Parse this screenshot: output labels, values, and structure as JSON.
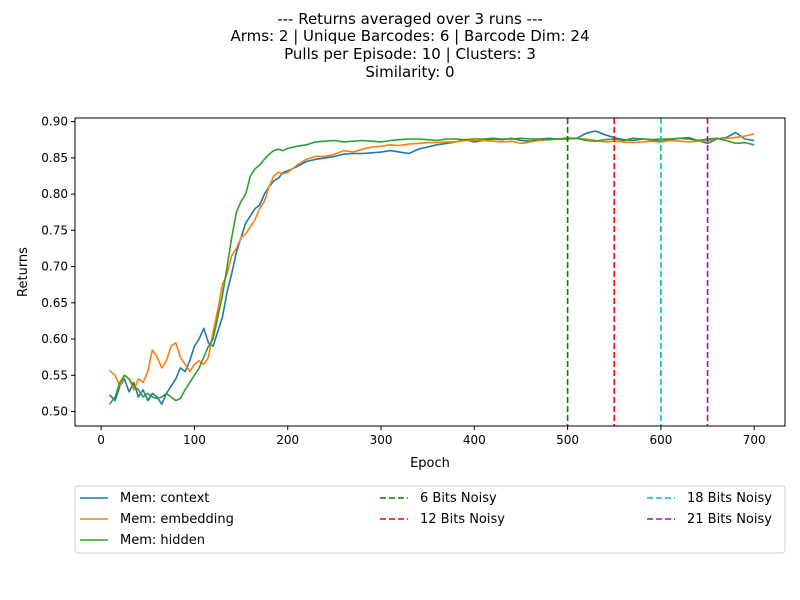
{
  "chart_data": {
    "type": "line",
    "title_lines": [
      "--- Returns averaged over 3 runs ---",
      "Arms: 2 | Unique Barcodes: 6 | Barcode Dim: 24",
      "Pulls per Episode: 10 | Clusters: 3",
      "Similarity: 0"
    ],
    "xlabel": "Epoch",
    "ylabel": "Returns",
    "xlim": [
      -28,
      733
    ],
    "ylim": [
      0.48,
      0.905
    ],
    "xticks": [
      0,
      100,
      200,
      300,
      400,
      500,
      600,
      700
    ],
    "yticks": [
      0.5,
      0.55,
      0.6,
      0.65,
      0.7,
      0.75,
      0.8,
      0.85,
      0.9
    ],
    "grid": false,
    "legend_position": "below-plot",
    "series": [
      {
        "name": "Mem: context",
        "color": "#1f77b4",
        "points": [
          [
            9,
            0.523
          ],
          [
            15,
            0.515
          ],
          [
            20,
            0.535
          ],
          [
            25,
            0.545
          ],
          [
            30,
            0.527
          ],
          [
            35,
            0.54
          ],
          [
            40,
            0.52
          ],
          [
            45,
            0.53
          ],
          [
            50,
            0.515
          ],
          [
            55,
            0.525
          ],
          [
            60,
            0.52
          ],
          [
            65,
            0.51
          ],
          [
            70,
            0.525
          ],
          [
            75,
            0.535
          ],
          [
            80,
            0.545
          ],
          [
            85,
            0.56
          ],
          [
            90,
            0.555
          ],
          [
            95,
            0.57
          ],
          [
            100,
            0.59
          ],
          [
            105,
            0.6
          ],
          [
            110,
            0.615
          ],
          [
            115,
            0.595
          ],
          [
            120,
            0.59
          ],
          [
            125,
            0.61
          ],
          [
            130,
            0.63
          ],
          [
            135,
            0.665
          ],
          [
            140,
            0.69
          ],
          [
            145,
            0.72
          ],
          [
            150,
            0.74
          ],
          [
            155,
            0.76
          ],
          [
            160,
            0.77
          ],
          [
            165,
            0.78
          ],
          [
            170,
            0.785
          ],
          [
            175,
            0.8
          ],
          [
            180,
            0.81
          ],
          [
            185,
            0.818
          ],
          [
            190,
            0.822
          ],
          [
            195,
            0.83
          ],
          [
            200,
            0.832
          ],
          [
            210,
            0.838
          ],
          [
            220,
            0.845
          ],
          [
            230,
            0.848
          ],
          [
            240,
            0.85
          ],
          [
            250,
            0.852
          ],
          [
            260,
            0.855
          ],
          [
            270,
            0.856
          ],
          [
            280,
            0.856
          ],
          [
            290,
            0.857
          ],
          [
            300,
            0.858
          ],
          [
            310,
            0.86
          ],
          [
            320,
            0.858
          ],
          [
            330,
            0.856
          ],
          [
            340,
            0.862
          ],
          [
            350,
            0.865
          ],
          [
            360,
            0.868
          ],
          [
            370,
            0.87
          ],
          [
            380,
            0.872
          ],
          [
            390,
            0.875
          ],
          [
            400,
            0.872
          ],
          [
            410,
            0.874
          ],
          [
            420,
            0.876
          ],
          [
            430,
            0.875
          ],
          [
            440,
            0.877
          ],
          [
            450,
            0.874
          ],
          [
            460,
            0.873
          ],
          [
            470,
            0.876
          ],
          [
            480,
            0.877
          ],
          [
            490,
            0.876
          ],
          [
            500,
            0.876
          ],
          [
            510,
            0.877
          ],
          [
            520,
            0.884
          ],
          [
            530,
            0.887
          ],
          [
            540,
            0.882
          ],
          [
            550,
            0.878
          ],
          [
            560,
            0.875
          ],
          [
            570,
            0.874
          ],
          [
            580,
            0.876
          ],
          [
            590,
            0.875
          ],
          [
            600,
            0.873
          ],
          [
            610,
            0.875
          ],
          [
            620,
            0.877
          ],
          [
            630,
            0.876
          ],
          [
            640,
            0.874
          ],
          [
            650,
            0.87
          ],
          [
            660,
            0.876
          ],
          [
            670,
            0.878
          ],
          [
            680,
            0.885
          ],
          [
            690,
            0.876
          ],
          [
            700,
            0.874
          ]
        ]
      },
      {
        "name": "Mem: embedding",
        "color": "#ff7f0e",
        "points": [
          [
            9,
            0.557
          ],
          [
            15,
            0.55
          ],
          [
            20,
            0.535
          ],
          [
            25,
            0.55
          ],
          [
            30,
            0.545
          ],
          [
            35,
            0.53
          ],
          [
            40,
            0.545
          ],
          [
            45,
            0.54
          ],
          [
            50,
            0.555
          ],
          [
            55,
            0.585
          ],
          [
            60,
            0.575
          ],
          [
            65,
            0.56
          ],
          [
            70,
            0.57
          ],
          [
            75,
            0.59
          ],
          [
            80,
            0.595
          ],
          [
            85,
            0.575
          ],
          [
            90,
            0.565
          ],
          [
            95,
            0.555
          ],
          [
            100,
            0.565
          ],
          [
            105,
            0.57
          ],
          [
            110,
            0.565
          ],
          [
            115,
            0.575
          ],
          [
            120,
            0.61
          ],
          [
            125,
            0.64
          ],
          [
            130,
            0.675
          ],
          [
            135,
            0.69
          ],
          [
            140,
            0.715
          ],
          [
            145,
            0.725
          ],
          [
            150,
            0.74
          ],
          [
            155,
            0.745
          ],
          [
            160,
            0.755
          ],
          [
            165,
            0.765
          ],
          [
            170,
            0.78
          ],
          [
            175,
            0.79
          ],
          [
            180,
            0.81
          ],
          [
            185,
            0.825
          ],
          [
            190,
            0.83
          ],
          [
            195,
            0.828
          ],
          [
            200,
            0.83
          ],
          [
            210,
            0.84
          ],
          [
            220,
            0.848
          ],
          [
            230,
            0.852
          ],
          [
            240,
            0.852
          ],
          [
            250,
            0.855
          ],
          [
            260,
            0.86
          ],
          [
            270,
            0.858
          ],
          [
            280,
            0.862
          ],
          [
            290,
            0.865
          ],
          [
            300,
            0.866
          ],
          [
            310,
            0.868
          ],
          [
            320,
            0.867
          ],
          [
            330,
            0.869
          ],
          [
            340,
            0.87
          ],
          [
            350,
            0.871
          ],
          [
            360,
            0.871
          ],
          [
            370,
            0.872
          ],
          [
            380,
            0.872
          ],
          [
            390,
            0.874
          ],
          [
            400,
            0.874
          ],
          [
            410,
            0.874
          ],
          [
            420,
            0.873
          ],
          [
            430,
            0.872
          ],
          [
            440,
            0.873
          ],
          [
            450,
            0.87
          ],
          [
            460,
            0.872
          ],
          [
            470,
            0.874
          ],
          [
            480,
            0.875
          ],
          [
            490,
            0.876
          ],
          [
            500,
            0.878
          ],
          [
            510,
            0.877
          ],
          [
            520,
            0.876
          ],
          [
            530,
            0.874
          ],
          [
            540,
            0.872
          ],
          [
            550,
            0.873
          ],
          [
            560,
            0.872
          ],
          [
            570,
            0.871
          ],
          [
            580,
            0.872
          ],
          [
            590,
            0.873
          ],
          [
            600,
            0.872
          ],
          [
            610,
            0.874
          ],
          [
            620,
            0.873
          ],
          [
            630,
            0.872
          ],
          [
            640,
            0.873
          ],
          [
            650,
            0.874
          ],
          [
            660,
            0.876
          ],
          [
            670,
            0.877
          ],
          [
            680,
            0.878
          ],
          [
            690,
            0.88
          ],
          [
            700,
            0.883
          ]
        ]
      },
      {
        "name": "Mem: hidden",
        "color": "#2ca02c",
        "points": [
          [
            9,
            0.51
          ],
          [
            15,
            0.52
          ],
          [
            20,
            0.54
          ],
          [
            25,
            0.55
          ],
          [
            30,
            0.545
          ],
          [
            35,
            0.535
          ],
          [
            40,
            0.53
          ],
          [
            45,
            0.52
          ],
          [
            50,
            0.525
          ],
          [
            55,
            0.52
          ],
          [
            60,
            0.518
          ],
          [
            65,
            0.52
          ],
          [
            70,
            0.525
          ],
          [
            75,
            0.52
          ],
          [
            80,
            0.515
          ],
          [
            85,
            0.518
          ],
          [
            90,
            0.53
          ],
          [
            95,
            0.54
          ],
          [
            100,
            0.55
          ],
          [
            105,
            0.56
          ],
          [
            110,
            0.575
          ],
          [
            115,
            0.59
          ],
          [
            120,
            0.6
          ],
          [
            125,
            0.63
          ],
          [
            130,
            0.66
          ],
          [
            135,
            0.7
          ],
          [
            140,
            0.74
          ],
          [
            145,
            0.775
          ],
          [
            150,
            0.79
          ],
          [
            155,
            0.8
          ],
          [
            160,
            0.825
          ],
          [
            165,
            0.835
          ],
          [
            170,
            0.84
          ],
          [
            175,
            0.848
          ],
          [
            180,
            0.855
          ],
          [
            185,
            0.86
          ],
          [
            190,
            0.862
          ],
          [
            195,
            0.86
          ],
          [
            200,
            0.863
          ],
          [
            210,
            0.866
          ],
          [
            220,
            0.868
          ],
          [
            230,
            0.872
          ],
          [
            240,
            0.873
          ],
          [
            250,
            0.874
          ],
          [
            260,
            0.872
          ],
          [
            270,
            0.873
          ],
          [
            280,
            0.874
          ],
          [
            290,
            0.873
          ],
          [
            300,
            0.872
          ],
          [
            310,
            0.874
          ],
          [
            320,
            0.875
          ],
          [
            330,
            0.876
          ],
          [
            340,
            0.876
          ],
          [
            350,
            0.875
          ],
          [
            360,
            0.874
          ],
          [
            370,
            0.876
          ],
          [
            380,
            0.876
          ],
          [
            390,
            0.875
          ],
          [
            400,
            0.876
          ],
          [
            410,
            0.876
          ],
          [
            420,
            0.877
          ],
          [
            430,
            0.876
          ],
          [
            440,
            0.876
          ],
          [
            450,
            0.877
          ],
          [
            460,
            0.876
          ],
          [
            470,
            0.876
          ],
          [
            480,
            0.875
          ],
          [
            490,
            0.876
          ],
          [
            500,
            0.876
          ],
          [
            510,
            0.877
          ],
          [
            520,
            0.874
          ],
          [
            530,
            0.873
          ],
          [
            540,
            0.875
          ],
          [
            550,
            0.876
          ],
          [
            560,
            0.874
          ],
          [
            570,
            0.877
          ],
          [
            580,
            0.876
          ],
          [
            590,
            0.875
          ],
          [
            600,
            0.876
          ],
          [
            610,
            0.876
          ],
          [
            620,
            0.877
          ],
          [
            630,
            0.878
          ],
          [
            640,
            0.874
          ],
          [
            650,
            0.876
          ],
          [
            660,
            0.877
          ],
          [
            670,
            0.874
          ],
          [
            680,
            0.87
          ],
          [
            690,
            0.871
          ],
          [
            700,
            0.868
          ]
        ]
      }
    ],
    "vlines": [
      {
        "name": "6 Bits Noisy",
        "x": 500,
        "color": "#008000"
      },
      {
        "name": "12 Bits Noisy",
        "x": 550,
        "color": "#ff0000"
      },
      {
        "name": "18 Bits Noisy",
        "x": 600,
        "color": "#00bfbf"
      },
      {
        "name": "21 Bits Noisy",
        "x": 650,
        "color": "#bf00bf"
      }
    ]
  }
}
